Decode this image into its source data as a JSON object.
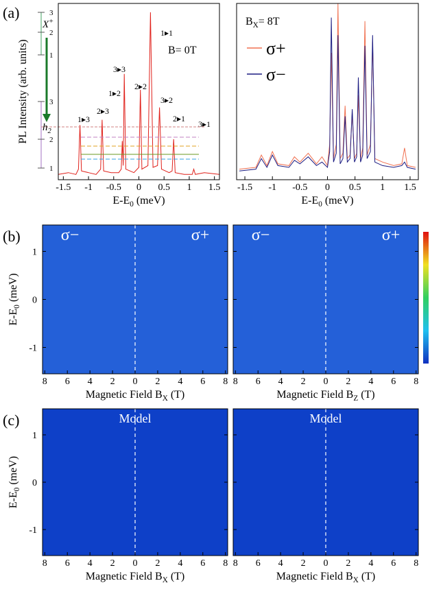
{
  "panel_labels": [
    "(a)",
    "(b)",
    "(c)"
  ],
  "chart_data": [
    {
      "type": "line",
      "ylabel": "PL Intensity (arb. units)",
      "xlabel": [
        "E-E",
        "0",
        " (meV)"
      ],
      "annotation": "B= 0T",
      "peak_labels": [
        "1▸3",
        "2▸3",
        "3▸3",
        "1▸2",
        "2▸2",
        "1▸1",
        "3▸2",
        "2▸1",
        "3▸1"
      ],
      "diagram": {
        "x_label": [
          "X",
          "+"
        ],
        "h_label": [
          "h",
          "2"
        ],
        "levels": [
          "3",
          "2",
          "1"
        ]
      },
      "x": [
        -1.6,
        -1.4,
        -1.25,
        -1.2,
        -1.17,
        -1.14,
        -1.0,
        -0.85,
        -0.76,
        -0.73,
        -0.7,
        -0.55,
        -0.4,
        -0.35,
        -0.33,
        -0.31,
        -0.29,
        -0.26,
        -0.1,
        0.0,
        0.03,
        0.06,
        0.18,
        0.23,
        0.28,
        0.37,
        0.41,
        0.45,
        0.6,
        0.66,
        0.69,
        0.72,
        0.9,
        1.06,
        1.09,
        1.12,
        1.3,
        1.6
      ],
      "series": [
        {
          "color": "#e0201a",
          "values": [
            3,
            4,
            3,
            6,
            31,
            5,
            4,
            3,
            6,
            34,
            5,
            4,
            4,
            6,
            22,
            8,
            60,
            6,
            4,
            7,
            51,
            6,
            8,
            95,
            7,
            8,
            41,
            6,
            4,
            5,
            23,
            4,
            3,
            3,
            6,
            3,
            4,
            3
          ]
        }
      ],
      "xlim": [
        -1.6,
        1.6
      ],
      "xticks": [
        -1.5,
        -1,
        -0.5,
        0,
        0.5,
        1,
        1.5
      ],
      "ylim": [
        0,
        100
      ]
    },
    {
      "type": "line",
      "xlabel": [
        "E-E",
        "0",
        " (meV)"
      ],
      "annotation": [
        "B",
        "X",
        "= 8T"
      ],
      "x": [
        -1.6,
        -1.3,
        -1.2,
        -1.1,
        -1.0,
        -0.9,
        -0.7,
        -0.6,
        -0.5,
        -0.35,
        -0.2,
        -0.1,
        0.0,
        0.04,
        0.07,
        0.11,
        0.16,
        0.19,
        0.23,
        0.28,
        0.32,
        0.36,
        0.41,
        0.45,
        0.49,
        0.53,
        0.56,
        0.6,
        0.64,
        0.68,
        0.72,
        0.78,
        0.82,
        0.86,
        1.0,
        1.2,
        1.35,
        1.4,
        1.45,
        1.6
      ],
      "series": [
        {
          "name": "σ+",
          "color": "#f07050",
          "values": [
            6,
            7,
            14,
            8,
            16,
            9,
            8,
            13,
            10,
            15,
            9,
            13,
            8,
            20,
            72,
            12,
            20,
            100,
            12,
            15,
            42,
            12,
            14,
            38,
            12,
            15,
            48,
            12,
            18,
            90,
            14,
            20,
            78,
            12,
            10,
            8,
            9,
            18,
            8,
            7
          ]
        },
        {
          "name": "σ−",
          "color": "#1a1a80",
          "values": [
            5,
            6,
            12,
            7,
            14,
            8,
            7,
            11,
            9,
            13,
            8,
            10,
            7,
            16,
            92,
            10,
            15,
            82,
            9,
            12,
            36,
            10,
            12,
            40,
            10,
            13,
            58,
            10,
            14,
            76,
            12,
            16,
            82,
            10,
            8,
            7,
            8,
            10,
            7,
            6
          ]
        }
      ],
      "xlim": [
        -1.65,
        1.65
      ],
      "xticks": [
        -1.5,
        -1,
        -0.5,
        0,
        0.5,
        1,
        1.5
      ],
      "ylim": [
        0,
        100
      ]
    },
    {
      "type": "heatmap",
      "labels": [
        "σ−",
        "σ+"
      ],
      "xlabel": [
        "Magnetic Field  B",
        "X",
        " (T)"
      ],
      "ylabel": [
        "E-E",
        "0",
        " (meV)"
      ],
      "xlim": [
        -8.2,
        8.2
      ],
      "xticks": [
        {
          "value": -8,
          "label": "8"
        },
        {
          "value": -6,
          "label": "6"
        },
        {
          "value": -4,
          "label": "4"
        },
        {
          "value": -2,
          "label": "2"
        },
        0,
        2,
        4,
        6,
        8
      ],
      "ylim": [
        -1.55,
        1.55
      ],
      "yticks": [
        -1,
        0,
        1
      ],
      "ytick_labels": true
    },
    {
      "type": "heatmap",
      "labels": [
        "σ−",
        "σ+"
      ],
      "xlabel": [
        "Magnetic Field  B",
        "Z",
        " (T)"
      ],
      "xlim": [
        -8.2,
        8.2
      ],
      "xticks": [
        {
          "value": -8,
          "label": "8"
        },
        {
          "value": -6,
          "label": "6"
        },
        {
          "value": -4,
          "label": "4"
        },
        {
          "value": -2,
          "label": "2"
        },
        0,
        2,
        4,
        6,
        8
      ],
      "ylim": [
        -1.55,
        1.55
      ],
      "yticks": [
        -1,
        0,
        1
      ],
      "ytick_labels": false
    },
    {
      "type": "heatmap",
      "labels": [
        "Model"
      ],
      "xlabel": [
        "Magnetic Field  B",
        "X",
        " (T)"
      ],
      "ylabel": [
        "E-E",
        "0",
        " (meV)"
      ],
      "xlim": [
        -8.2,
        8.2
      ],
      "xticks": [
        {
          "value": -8,
          "label": "8"
        },
        {
          "value": -6,
          "label": "6"
        },
        {
          "value": -4,
          "label": "4"
        },
        {
          "value": -2,
          "label": "2"
        },
        0,
        2,
        4,
        6,
        8
      ],
      "ylim": [
        -1.55,
        1.55
      ],
      "yticks": [
        -1,
        0,
        1
      ],
      "ytick_labels": true
    },
    {
      "type": "heatmap",
      "labels": [
        "Model"
      ],
      "xlabel": [
        "Magnetic Field  B",
        "X",
        " (T)"
      ],
      "xlim": [
        -8.2,
        8.2
      ],
      "xticks": [
        {
          "value": -8,
          "label": "8"
        },
        {
          "value": -6,
          "label": "6"
        },
        {
          "value": -4,
          "label": "4"
        },
        {
          "value": -2,
          "label": "2"
        },
        0,
        2,
        4,
        6,
        8
      ],
      "ylim": [
        -1.55,
        1.55
      ],
      "yticks": [
        -1,
        0,
        1
      ],
      "ytick_labels": false
    }
  ]
}
